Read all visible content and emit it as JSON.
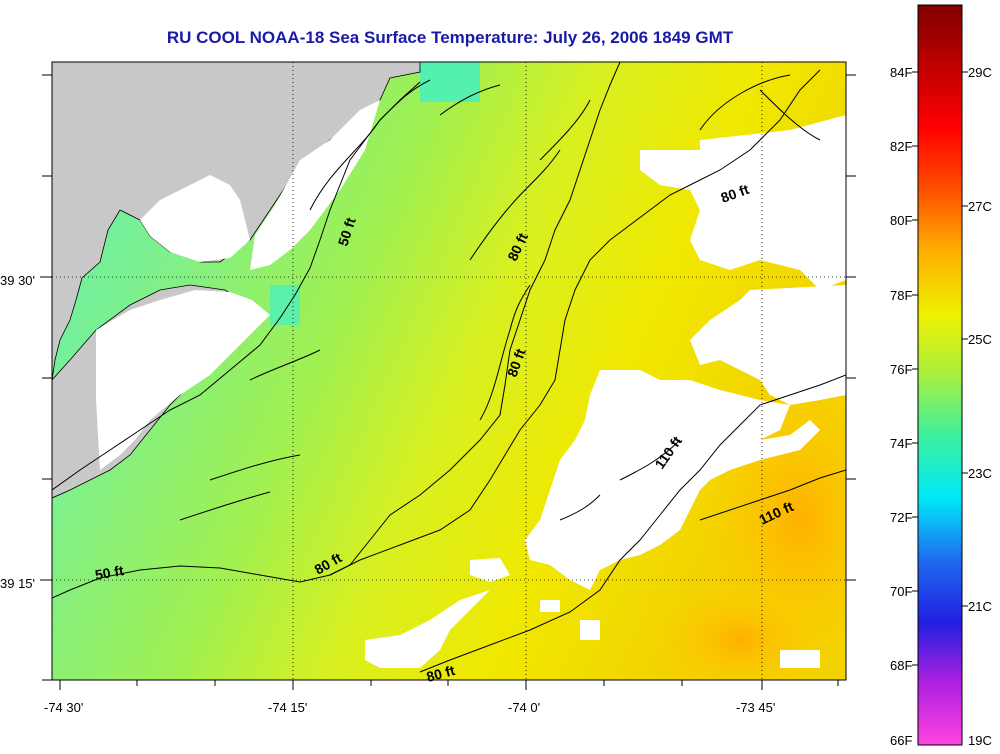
{
  "title": "RU COOL  NOAA-18  Sea Surface Temperature:  July 26, 2006 1849 GMT",
  "x_ticks": [
    "-74 30'",
    "-74 15'",
    "-74 0'",
    "-73 45'"
  ],
  "y_ticks": [
    "39 30'",
    "39 15'"
  ],
  "isobath_labels": [
    {
      "text": "50 ft",
      "rot": -72
    },
    {
      "text": "80 ft",
      "rot": -65
    },
    {
      "text": "80 ft",
      "rot": -20
    },
    {
      "text": "80 ft",
      "rot": -70
    },
    {
      "text": "110 ft",
      "rot": -55
    },
    {
      "text": "110 ft",
      "rot": -25
    },
    {
      "text": "50 ft",
      "rot": -10
    },
    {
      "text": "80 ft",
      "rot": -30
    },
    {
      "text": "80 ft",
      "rot": -15
    }
  ],
  "colorbar": {
    "f_labels": [
      "84F",
      "82F",
      "80F",
      "78F",
      "76F",
      "74F",
      "72F",
      "70F",
      "68F",
      "66F"
    ],
    "c_labels": [
      "29C",
      "27C",
      "25C",
      "23C",
      "21C",
      "19C"
    ],
    "stops": [
      "#ff44e0",
      "#b020e0",
      "#2020e0",
      "#1e6cf0",
      "#00e8f8",
      "#3cf0a0",
      "#a8f040",
      "#f0f000",
      "#ffb000",
      "#ff5000",
      "#ff0000",
      "#c00000",
      "#800000"
    ]
  },
  "colors": {
    "land": "#c8c8c8",
    "cloud": "#ffffff",
    "frame": "#000000",
    "title": "#1a1aa6"
  }
}
